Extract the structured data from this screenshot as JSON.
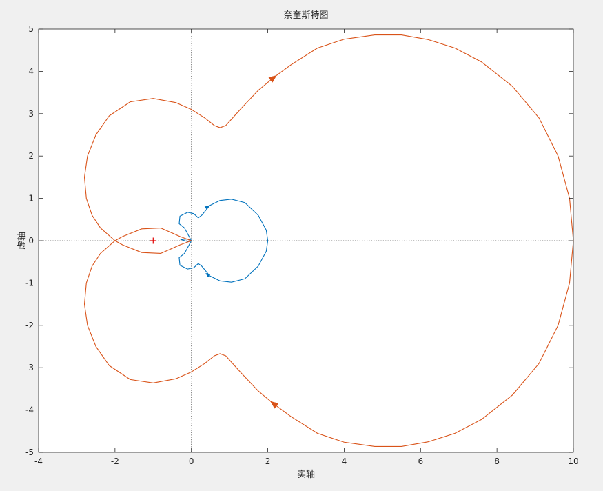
{
  "chart_data": {
    "type": "line",
    "title": "奈奎斯特图",
    "xlabel": "实轴",
    "ylabel": "虚轴",
    "xlim": [
      -4,
      10
    ],
    "ylim": [
      -5,
      5
    ],
    "x_ticks": [
      -4,
      -2,
      0,
      2,
      4,
      6,
      8,
      10
    ],
    "y_ticks": [
      -5,
      -4,
      -3,
      -2,
      -1,
      0,
      1,
      2,
      3,
      4,
      5
    ],
    "x_tick_labels": [
      "-4",
      "-2",
      "0",
      "2",
      "4",
      "6",
      "8",
      "10"
    ],
    "y_tick_labels": [
      "-5",
      "-4",
      "-3",
      "-2",
      "-1",
      "0",
      "1",
      "2",
      "3",
      "4",
      "5"
    ],
    "grid": false,
    "reference_lines": {
      "x": 0,
      "y": 0,
      "style": "dotted"
    },
    "critical_point": {
      "x": -1,
      "y": 0,
      "marker": "+",
      "color": "#e00000"
    },
    "series": [
      {
        "color": "#0072bd",
        "points": [
          [
            0,
            0
          ],
          [
            -0.1,
            0.04
          ],
          [
            -0.28,
            0.03
          ],
          [
            -0.1,
            -0.02
          ],
          [
            0,
            0
          ],
          [
            -0.18,
            0.3
          ],
          [
            -0.32,
            0.4
          ],
          [
            -0.3,
            0.58
          ],
          [
            -0.1,
            0.67
          ],
          [
            0.06,
            0.64
          ],
          [
            0.18,
            0.54
          ],
          [
            0.27,
            0.6
          ],
          [
            0.48,
            0.83
          ],
          [
            0.75,
            0.95
          ],
          [
            1.05,
            0.98
          ],
          [
            1.4,
            0.9
          ],
          [
            1.75,
            0.6
          ],
          [
            1.96,
            0.25
          ],
          [
            2.0,
            0
          ],
          [
            1.96,
            -0.25
          ],
          [
            1.75,
            -0.6
          ],
          [
            1.4,
            -0.9
          ],
          [
            1.05,
            -0.98
          ],
          [
            0.75,
            -0.95
          ],
          [
            0.48,
            -0.83
          ],
          [
            0.27,
            -0.6
          ],
          [
            0.18,
            -0.54
          ],
          [
            0.06,
            -0.64
          ],
          [
            -0.1,
            -0.67
          ],
          [
            -0.3,
            -0.58
          ],
          [
            -0.32,
            -0.4
          ],
          [
            -0.18,
            -0.3
          ],
          [
            0,
            0
          ]
        ],
        "arrows": [
          {
            "x": 0.42,
            "y": 0.8,
            "dx": 1,
            "dy": 0.8
          },
          {
            "x": 0.42,
            "y": -0.8,
            "dx": -1,
            "dy": 0.8
          }
        ]
      },
      {
        "color": "#d95319",
        "points": [
          [
            0,
            0
          ],
          [
            -0.3,
            0.1
          ],
          [
            -0.8,
            0.3
          ],
          [
            -1.3,
            0.28
          ],
          [
            -1.8,
            0.1
          ],
          [
            -2.0,
            0
          ],
          [
            -2.38,
            -0.3
          ],
          [
            -2.6,
            -0.6
          ],
          [
            -2.75,
            -1.0
          ],
          [
            -2.8,
            -1.5
          ],
          [
            -2.72,
            -2.0
          ],
          [
            -2.5,
            -2.5
          ],
          [
            -2.15,
            -2.95
          ],
          [
            -1.6,
            -3.28
          ],
          [
            -1.0,
            -3.36
          ],
          [
            -0.4,
            -3.26
          ],
          [
            0,
            -3.1
          ],
          [
            0.35,
            -2.9
          ],
          [
            0.6,
            -2.72
          ],
          [
            0.75,
            -2.67
          ],
          [
            0.9,
            -2.72
          ],
          [
            1.3,
            -3.12
          ],
          [
            1.75,
            -3.55
          ],
          [
            2.15,
            -3.85
          ],
          [
            2.6,
            -4.15
          ],
          [
            3.3,
            -4.55
          ],
          [
            4.0,
            -4.76
          ],
          [
            4.8,
            -4.86
          ],
          [
            5.5,
            -4.86
          ],
          [
            6.2,
            -4.75
          ],
          [
            6.9,
            -4.55
          ],
          [
            7.6,
            -4.22
          ],
          [
            8.4,
            -3.65
          ],
          [
            9.1,
            -2.9
          ],
          [
            9.6,
            -2.0
          ],
          [
            9.9,
            -1.0
          ],
          [
            10,
            0
          ],
          [
            9.9,
            1.0
          ],
          [
            9.6,
            2.0
          ],
          [
            9.1,
            2.9
          ],
          [
            8.4,
            3.65
          ],
          [
            7.6,
            4.22
          ],
          [
            6.9,
            4.55
          ],
          [
            6.2,
            4.75
          ],
          [
            5.5,
            4.86
          ],
          [
            4.8,
            4.86
          ],
          [
            4.0,
            4.76
          ],
          [
            3.3,
            4.55
          ],
          [
            2.6,
            4.15
          ],
          [
            2.15,
            3.85
          ],
          [
            1.75,
            3.55
          ],
          [
            1.3,
            3.12
          ],
          [
            0.9,
            2.72
          ],
          [
            0.75,
            2.67
          ],
          [
            0.6,
            2.72
          ],
          [
            0.35,
            2.9
          ],
          [
            0,
            3.1
          ],
          [
            -0.4,
            3.26
          ],
          [
            -1.0,
            3.36
          ],
          [
            -1.6,
            3.28
          ],
          [
            -2.15,
            2.95
          ],
          [
            -2.5,
            2.5
          ],
          [
            -2.72,
            2.0
          ],
          [
            -2.8,
            1.5
          ],
          [
            -2.75,
            1.0
          ],
          [
            -2.6,
            0.6
          ],
          [
            -2.38,
            0.3
          ],
          [
            -2.0,
            0
          ],
          [
            -1.8,
            -0.1
          ],
          [
            -1.3,
            -0.28
          ],
          [
            -0.8,
            -0.3
          ],
          [
            -0.3,
            -0.1
          ],
          [
            0,
            0
          ]
        ],
        "arrows": [
          {
            "x": 2.15,
            "y": 3.85,
            "dx": 1,
            "dy": 0.75
          },
          {
            "x": 2.15,
            "y": -3.85,
            "dx": -1,
            "dy": 0.75
          }
        ]
      }
    ]
  }
}
